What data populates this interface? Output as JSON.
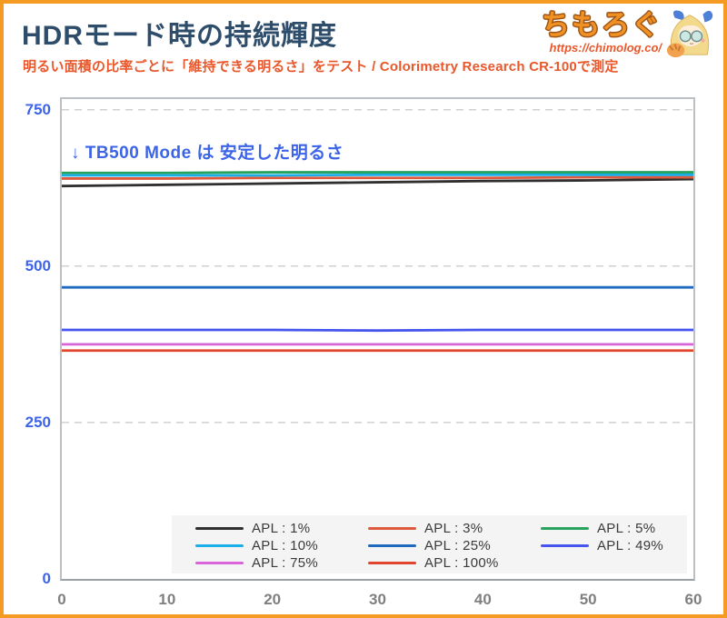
{
  "header": {
    "title": "HDRモード時の持続輝度",
    "subtitle": "明るい面積の比率ごとに「維持できる明るさ」をテスト / Colorimetry Research CR-100で測定",
    "title_color": "#2E4D6B",
    "subtitle_color": "#E8582C",
    "logo": {
      "text": "ちもろぐ",
      "url": "https://chimolog.co/",
      "color": "#F09124"
    }
  },
  "annotation": {
    "text": "↓ TB500 Mode は 安定した明るさ",
    "color": "#3C64E8"
  },
  "frame": {
    "border_color": "#F59A23"
  },
  "chart_data": {
    "type": "line",
    "x": [
      0,
      10,
      20,
      30,
      40,
      50,
      60
    ],
    "xticks": [
      0,
      10,
      20,
      30,
      40,
      50,
      60
    ],
    "yticks": [
      0,
      250,
      500,
      750
    ],
    "ylim": [
      0,
      767
    ],
    "xlim": [
      0,
      60
    ],
    "grid": "horizontal-dashed",
    "legend_position": "bottom-center",
    "xlabel": "",
    "ylabel": "",
    "series": [
      {
        "name": "APL : 1%",
        "color": "#2F2F2F",
        "values": [
          628,
          630,
          632,
          634,
          636,
          637,
          639
        ]
      },
      {
        "name": "APL : 3%",
        "color": "#DD5B3C",
        "values": [
          640,
          640,
          641,
          641,
          641,
          642,
          642
        ]
      },
      {
        "name": "APL : 5%",
        "color": "#27A35E",
        "values": [
          649,
          649,
          650,
          650,
          650,
          650,
          650
        ]
      },
      {
        "name": "APL : 10%",
        "color": "#19AEE8",
        "values": [
          645,
          645,
          645,
          646,
          646,
          646,
          646
        ]
      },
      {
        "name": "APL : 25%",
        "color": "#1E6ABF",
        "values": [
          466,
          466,
          466,
          466,
          466,
          466,
          466
        ]
      },
      {
        "name": "APL : 49%",
        "color": "#4655ED",
        "values": [
          398,
          398,
          398,
          397,
          398,
          398,
          398
        ]
      },
      {
        "name": "APL : 75%",
        "color": "#D964D9",
        "values": [
          375,
          375,
          375,
          375,
          375,
          375,
          375
        ]
      },
      {
        "name": "APL : 100%",
        "color": "#E2452E",
        "values": [
          365,
          365,
          365,
          365,
          365,
          365,
          365
        ]
      }
    ],
    "axis_colors": {
      "y_ticks": "#3C64E8",
      "x_ticks": "#7F7F7F",
      "gridline": "#D0D0D0"
    }
  }
}
